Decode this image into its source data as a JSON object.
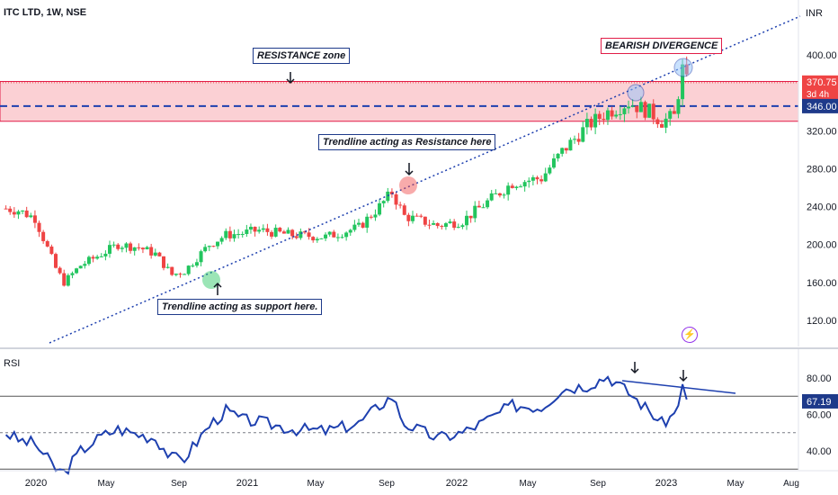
{
  "symbol": {
    "title": "ITC LTD, 1W, NSE"
  },
  "price_axis": {
    "currency": "INR",
    "ticks": [
      "400.00",
      "320.00",
      "280.00",
      "240.00",
      "200.00",
      "160.00",
      "120.00"
    ]
  },
  "price_tags": {
    "last_price": "370.75",
    "countdown": "3d 4h",
    "level": "346.00"
  },
  "rsi": {
    "title": "RSI",
    "ticks": [
      "80.00",
      "60.00",
      "40.00"
    ],
    "value_tag": "67.19"
  },
  "time_axis": {
    "labels": [
      "2020",
      "May",
      "Sep",
      "2021",
      "May",
      "Sep",
      "2022",
      "May",
      "Sep",
      "2023",
      "May",
      "Aug"
    ]
  },
  "annotations": {
    "resistance_zone": "RESISTANCE zone",
    "bearish_divergence": "BEARISH DIVERGENCE",
    "trendline_resistance": "Trendline acting as Resistance here",
    "trendline_support": "Trendline acting as support here."
  },
  "icons": {
    "flash": "flash-icon",
    "arrow": "arrow-down-icon"
  },
  "colors": {
    "up": "#22c55e",
    "down": "#ef4444",
    "zone": "#fbd0d4",
    "trendline": "#1e40af",
    "rsi_line": "#1e40af"
  },
  "chart_data": {
    "type": "candlestick",
    "title": "ITC LTD, 1W, NSE",
    "ylim": [
      95,
      430
    ],
    "resistance_zone": [
      330,
      372
    ],
    "level_line": 346,
    "close_points": [
      [
        "2019-12-20",
        238
      ],
      [
        "2020-01-10",
        236
      ],
      [
        "2020-02-07",
        228
      ],
      [
        "2020-03-13",
        175
      ],
      [
        "2020-03-27",
        160
      ],
      [
        "2020-04-24",
        178
      ],
      [
        "2020-05-29",
        190
      ],
      [
        "2020-06-26",
        200
      ],
      [
        "2020-07-31",
        197
      ],
      [
        "2020-08-28",
        190
      ],
      [
        "2020-09-25",
        168
      ],
      [
        "2020-10-16",
        172
      ],
      [
        "2020-11-27",
        200
      ],
      [
        "2020-12-25",
        210
      ],
      [
        "2021-01-22",
        212
      ],
      [
        "2021-02-19",
        215
      ],
      [
        "2021-04-16",
        210
      ],
      [
        "2021-06-11",
        208
      ],
      [
        "2021-08-06",
        218
      ],
      [
        "2021-09-10",
        240
      ],
      [
        "2021-10-01",
        255
      ],
      [
        "2021-10-22",
        230
      ],
      [
        "2021-12-17",
        220
      ],
      [
        "2022-01-28",
        225
      ],
      [
        "2022-03-11",
        245
      ],
      [
        "2022-04-22",
        265
      ],
      [
        "2022-06-10",
        270
      ],
      [
        "2022-07-15",
        298
      ],
      [
        "2022-08-26",
        325
      ],
      [
        "2022-09-30",
        340
      ],
      [
        "2022-11-04",
        350
      ],
      [
        "2022-12-09",
        340
      ],
      [
        "2022-12-30",
        330
      ],
      [
        "2023-01-20",
        335
      ],
      [
        "2023-02-03",
        385
      ],
      [
        "2023-02-10",
        370.75
      ]
    ],
    "rsi_points": [
      [
        "2019-12-20",
        50
      ],
      [
        "2020-01-10",
        46
      ],
      [
        "2020-02-07",
        44
      ],
      [
        "2020-03-13",
        30
      ],
      [
        "2020-03-27",
        28
      ],
      [
        "2020-04-24",
        40
      ],
      [
        "2020-05-29",
        48
      ],
      [
        "2020-06-26",
        52
      ],
      [
        "2020-07-31",
        49
      ],
      [
        "2020-08-28",
        47
      ],
      [
        "2020-09-25",
        36
      ],
      [
        "2020-10-16",
        36
      ],
      [
        "2020-11-27",
        54
      ],
      [
        "2020-12-25",
        62
      ],
      [
        "2021-01-22",
        57
      ],
      [
        "2021-02-19",
        56
      ],
      [
        "2021-04-16",
        52
      ],
      [
        "2021-06-11",
        51
      ],
      [
        "2021-08-06",
        55
      ],
      [
        "2021-09-10",
        65
      ],
      [
        "2021-10-01",
        70
      ],
      [
        "2021-10-22",
        55
      ],
      [
        "2021-12-17",
        47
      ],
      [
        "2022-01-28",
        50
      ],
      [
        "2022-03-11",
        57
      ],
      [
        "2022-04-22",
        65
      ],
      [
        "2022-06-10",
        64
      ],
      [
        "2022-07-15",
        74
      ],
      [
        "2022-08-26",
        76
      ],
      [
        "2022-09-30",
        81
      ],
      [
        "2022-11-04",
        72
      ],
      [
        "2022-12-09",
        62
      ],
      [
        "2022-12-30",
        55
      ],
      [
        "2023-01-20",
        60
      ],
      [
        "2023-02-03",
        75
      ],
      [
        "2023-02-10",
        67.19
      ]
    ],
    "rsi_ylim": [
      26,
      90
    ],
    "rsi_levels": [
      70,
      50,
      30
    ]
  }
}
